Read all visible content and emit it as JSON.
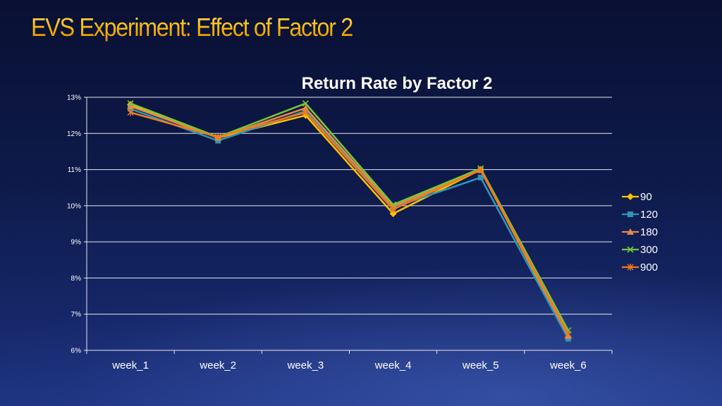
{
  "slide": {
    "title": "EVS Experiment: Effect of Factor 2"
  },
  "chart_data": {
    "type": "line",
    "title": "Return Rate by Factor 2",
    "xlabel": "",
    "ylabel": "",
    "categories": [
      "week_1",
      "week_2",
      "week_3",
      "week_4",
      "week_5",
      "week_6"
    ],
    "y_ticks": [
      "6%",
      "7%",
      "8%",
      "9%",
      "10%",
      "11%",
      "12%",
      "13%"
    ],
    "ylim": [
      0.06,
      0.13
    ],
    "grid": true,
    "legend_position": "right",
    "series": [
      {
        "name": "90",
        "color": "#ffc000",
        "marker": "diamond",
        "values": [
          0.128,
          0.1188,
          0.125,
          0.0978,
          0.11,
          0.0635
        ]
      },
      {
        "name": "120",
        "color": "#2e95b8",
        "marker": "square",
        "values": [
          0.1268,
          0.118,
          0.1262,
          0.0995,
          0.1078,
          0.0632
        ]
      },
      {
        "name": "180",
        "color": "#e8884a",
        "marker": "triangle",
        "values": [
          0.1275,
          0.1188,
          0.127,
          0.0998,
          0.1098,
          0.064
        ]
      },
      {
        "name": "300",
        "color": "#76c63b",
        "marker": "x",
        "values": [
          0.1283,
          0.119,
          0.1283,
          0.1003,
          0.1103,
          0.0655
        ]
      },
      {
        "name": "900",
        "color": "#f07a1a",
        "marker": "star",
        "values": [
          0.1258,
          0.119,
          0.1258,
          0.099,
          0.11,
          0.0645
        ]
      }
    ]
  }
}
